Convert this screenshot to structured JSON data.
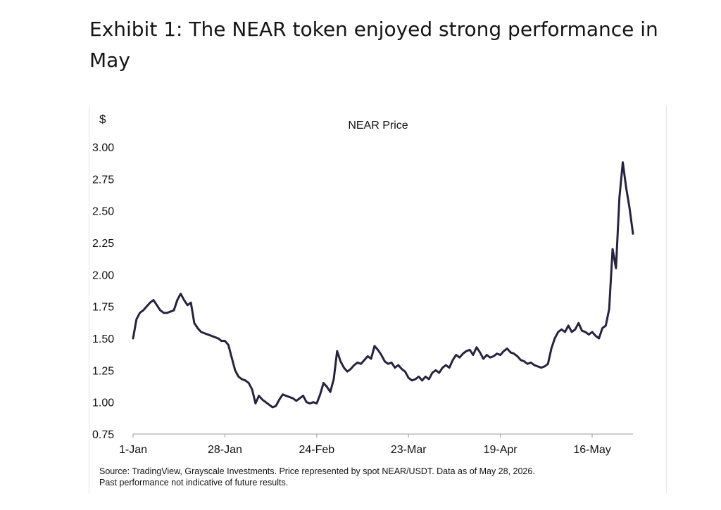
{
  "exhibit": {
    "title": "Exhibit 1: The NEAR token enjoyed strong performance in May"
  },
  "source": {
    "line1": "Source: TradingView, Grayscale Investments. Price represented by spot NEAR/USDT. Data as of May 28, 2026.",
    "line2": "Past performance not indicative of future results."
  },
  "colors": {
    "series": "#27223f",
    "axis": "#9a9a9a",
    "text": "#111111"
  },
  "chart_data": {
    "type": "line",
    "title": "NEAR Price",
    "ylabel": "$",
    "xlabel": "",
    "ylim": [
      0.75,
      3.0
    ],
    "yticks": [
      "0.75",
      "1.00",
      "1.25",
      "1.50",
      "1.75",
      "2.00",
      "2.25",
      "2.50",
      "2.75",
      "3.00"
    ],
    "xticks": [
      {
        "label": "1-Jan",
        "day": 0
      },
      {
        "label": "28-Jan",
        "day": 27
      },
      {
        "label": "24-Feb",
        "day": 54
      },
      {
        "label": "23-Mar",
        "day": 81
      },
      {
        "label": "19-Apr",
        "day": 108
      },
      {
        "label": "16-May",
        "day": 135
      }
    ],
    "grid": false,
    "legend": "none",
    "series": [
      {
        "x": [
          0,
          1,
          2,
          3,
          4,
          5,
          6,
          7,
          8,
          9,
          10,
          11,
          12,
          13,
          14,
          15,
          16,
          17,
          18,
          19,
          20,
          21,
          22,
          23,
          24,
          25,
          26,
          27,
          28,
          29,
          30,
          31,
          32,
          33,
          34,
          35,
          36,
          37,
          38,
          39,
          40,
          41,
          42,
          43,
          44,
          45,
          46,
          47,
          48,
          49,
          50,
          51,
          52,
          53,
          54,
          55,
          56,
          57,
          58,
          59,
          60,
          61,
          62,
          63,
          64,
          65,
          66,
          67,
          68,
          69,
          70,
          71,
          72,
          73,
          74,
          75,
          76,
          77,
          78,
          79,
          80,
          81,
          82,
          83,
          84,
          85,
          86,
          87,
          88,
          89,
          90,
          91,
          92,
          93,
          94,
          95,
          96,
          97,
          98,
          99,
          100,
          101,
          102,
          103,
          104,
          105,
          106,
          107,
          108,
          109,
          110,
          111,
          112,
          113,
          114,
          115,
          116,
          117,
          118,
          119,
          120,
          121,
          122,
          123,
          124,
          125,
          126,
          127,
          128,
          129,
          130,
          131,
          132,
          133,
          134,
          135,
          136,
          137,
          138,
          139,
          140,
          141,
          142,
          143,
          144,
          145,
          146,
          147
        ],
        "values": [
          1.5,
          1.65,
          1.7,
          1.72,
          1.75,
          1.78,
          1.8,
          1.76,
          1.72,
          1.7,
          1.7,
          1.71,
          1.72,
          1.8,
          1.85,
          1.8,
          1.76,
          1.78,
          1.62,
          1.58,
          1.55,
          1.54,
          1.53,
          1.52,
          1.51,
          1.5,
          1.48,
          1.48,
          1.45,
          1.35,
          1.25,
          1.2,
          1.18,
          1.17,
          1.15,
          1.1,
          0.99,
          1.05,
          1.02,
          1.0,
          0.98,
          0.96,
          0.97,
          1.02,
          1.06,
          1.05,
          1.04,
          1.03,
          1.01,
          1.03,
          1.05,
          1.0,
          0.99,
          1.0,
          0.99,
          1.06,
          1.15,
          1.12,
          1.08,
          1.18,
          1.4,
          1.32,
          1.27,
          1.24,
          1.26,
          1.29,
          1.31,
          1.3,
          1.33,
          1.36,
          1.34,
          1.44,
          1.41,
          1.37,
          1.32,
          1.3,
          1.31,
          1.27,
          1.29,
          1.26,
          1.24,
          1.19,
          1.17,
          1.18,
          1.2,
          1.17,
          1.2,
          1.18,
          1.23,
          1.25,
          1.23,
          1.27,
          1.29,
          1.27,
          1.33,
          1.37,
          1.35,
          1.38,
          1.4,
          1.41,
          1.37,
          1.43,
          1.39,
          1.34,
          1.37,
          1.35,
          1.36,
          1.38,
          1.37,
          1.4,
          1.42,
          1.39,
          1.38,
          1.36,
          1.33,
          1.32,
          1.3,
          1.31,
          1.29,
          1.28,
          1.27,
          1.28,
          1.3,
          1.42,
          1.5,
          1.55,
          1.57,
          1.55,
          1.6,
          1.55,
          1.57,
          1.62,
          1.56,
          1.55,
          1.53,
          1.55,
          1.52,
          1.5,
          1.58,
          1.6,
          1.73,
          2.2,
          2.05,
          2.6,
          2.88,
          2.68,
          2.52,
          2.32
        ]
      }
    ]
  }
}
